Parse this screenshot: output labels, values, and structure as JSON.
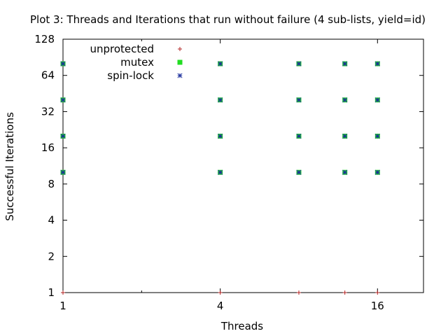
{
  "chart_data": {
    "type": "scatter",
    "title": "Plot 3: Threads and Iterations that run without failure (4 sub-lists, yield=id)",
    "xlabel": "Threads",
    "ylabel": "Successful Iterations",
    "x_scale": "log2",
    "y_scale": "log2",
    "xlim": [
      1,
      24
    ],
    "ylim": [
      1,
      128
    ],
    "x_ticks": [
      1,
      4,
      16
    ],
    "x_minor_ticks": [
      2
    ],
    "y_ticks": [
      1,
      2,
      4,
      8,
      16,
      32,
      64,
      128
    ],
    "legend_position": "top-left",
    "series": [
      {
        "name": "unprotected",
        "marker": "plus",
        "color": "#b22222",
        "points": [
          [
            1,
            1
          ],
          [
            4,
            1
          ],
          [
            8,
            1
          ],
          [
            12,
            1
          ],
          [
            16,
            1
          ]
        ]
      },
      {
        "name": "mutex",
        "marker": "square",
        "color": "#22dd22",
        "points": [
          [
            1,
            10
          ],
          [
            1,
            20
          ],
          [
            1,
            40
          ],
          [
            1,
            80
          ],
          [
            4,
            10
          ],
          [
            4,
            20
          ],
          [
            4,
            40
          ],
          [
            4,
            80
          ],
          [
            8,
            10
          ],
          [
            8,
            20
          ],
          [
            8,
            40
          ],
          [
            8,
            80
          ],
          [
            12,
            10
          ],
          [
            12,
            20
          ],
          [
            12,
            40
          ],
          [
            12,
            80
          ],
          [
            16,
            10
          ],
          [
            16,
            20
          ],
          [
            16,
            40
          ],
          [
            16,
            80
          ]
        ]
      },
      {
        "name": "spin-lock",
        "marker": "star",
        "color": "#1c2f9c",
        "points": [
          [
            1,
            10
          ],
          [
            1,
            20
          ],
          [
            1,
            40
          ],
          [
            1,
            80
          ],
          [
            4,
            10
          ],
          [
            4,
            20
          ],
          [
            4,
            40
          ],
          [
            4,
            80
          ],
          [
            8,
            10
          ],
          [
            8,
            20
          ],
          [
            8,
            40
          ],
          [
            8,
            80
          ],
          [
            12,
            10
          ],
          [
            12,
            20
          ],
          [
            12,
            40
          ],
          [
            12,
            80
          ],
          [
            16,
            10
          ],
          [
            16,
            20
          ],
          [
            16,
            40
          ],
          [
            16,
            80
          ]
        ]
      }
    ]
  }
}
